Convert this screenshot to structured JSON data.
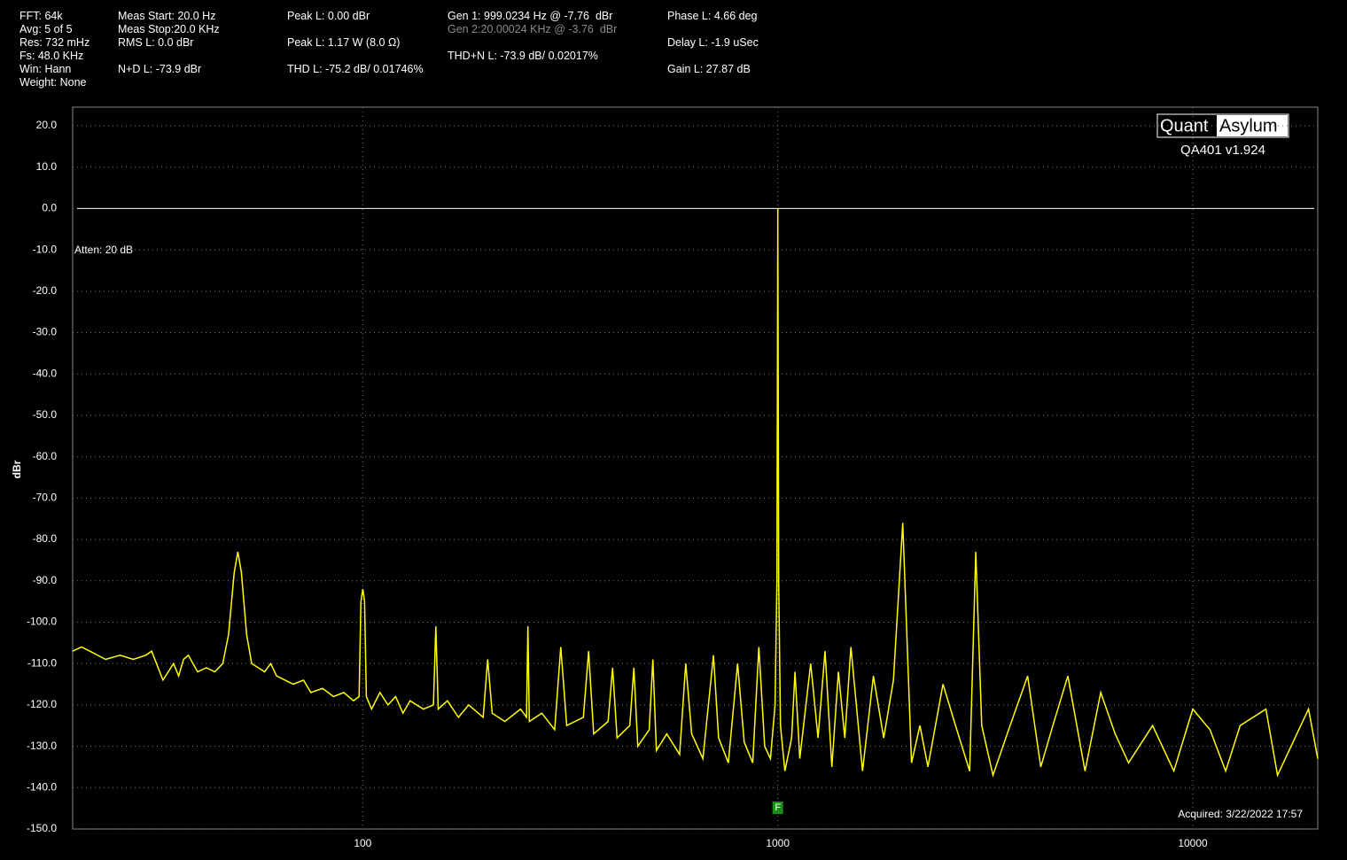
{
  "header": {
    "col1": [
      "FFT: 64k",
      "Avg: 5 of 5",
      "Res: 732 mHz",
      "Fs: 48.0 KHz",
      "Win: Hann",
      "Weight: None"
    ],
    "col2": [
      "Meas Start: 20.0 Hz",
      "Meas Stop:20.0 KHz",
      "RMS L: 0.0 dBr",
      "N+D L: -73.9 dBr"
    ],
    "col3": [
      "Peak L: 0.00 dBr",
      "Peak L: 1.17 W (8.0 Ω)",
      "THD L: -75.2 dB/ 0.01746%"
    ],
    "col4": [
      "Gen 1: 999.0234 Hz @ -7.76  dBr",
      "Gen 2:20.00024 KHz @ -3.76  dBr",
      "THD+N L: -73.9 dB/ 0.02017%"
    ],
    "col5": [
      "Phase L: 4.66 deg",
      "Delay L: -1.9 uSec",
      "Gain L: 27.87 dB"
    ]
  },
  "logo": {
    "left": "Quant",
    "right": "Asylum",
    "version": "QA401 v1.924"
  },
  "chart_data": {
    "type": "line",
    "ylabel": "dBr",
    "annotation": "Atten: 20 dB",
    "acquired": "Acquired: 3/22/2022  17:57",
    "marker": {
      "label": "F",
      "x": 1000
    },
    "xscale": "log",
    "xlim": [
      20,
      20000
    ],
    "xticks": [
      100,
      1000,
      10000
    ],
    "ylim": [
      -150,
      24.5
    ],
    "yticks": [
      {
        "value": -150,
        "label": "-150.0"
      },
      {
        "value": -140,
        "label": "-140.0"
      },
      {
        "value": -130,
        "label": "-130.0"
      },
      {
        "value": -120,
        "label": "-120.0"
      },
      {
        "value": -110,
        "label": "-110.0"
      },
      {
        "value": -100,
        "label": "-100.0"
      },
      {
        "value": -90,
        "label": "-90.0"
      },
      {
        "value": -80,
        "label": "-80.0"
      },
      {
        "value": -70,
        "label": "-70.0"
      },
      {
        "value": -60,
        "label": "-60.0"
      },
      {
        "value": -50,
        "label": "-50.0"
      },
      {
        "value": -40,
        "label": "-40.0"
      },
      {
        "value": -30,
        "label": "-30.0"
      },
      {
        "value": -20,
        "label": "-20.0"
      },
      {
        "value": -10,
        "label": "-10.0"
      },
      {
        "value": 0,
        "label": "0.0"
      },
      {
        "value": 10,
        "label": "10.0"
      },
      {
        "value": 20,
        "label": "20.0"
      }
    ],
    "grid": true,
    "reference_line": 0,
    "x": [
      20,
      21,
      22,
      24,
      26,
      28,
      30,
      31,
      33,
      35,
      36,
      37,
      38,
      40,
      42,
      44,
      46,
      47.5,
      49,
      50,
      51,
      52.5,
      54,
      56,
      58,
      60,
      62,
      65,
      68,
      72,
      75,
      80,
      85,
      90,
      95,
      98,
      99,
      100,
      101,
      102,
      105,
      110,
      115,
      120,
      125,
      130,
      140,
      148,
      150,
      152,
      160,
      170,
      180,
      195,
      200,
      205,
      220,
      240,
      248,
      250,
      252,
      270,
      290,
      300,
      310,
      340,
      350,
      360,
      390,
      400,
      410,
      440,
      450,
      460,
      490,
      500,
      510,
      540,
      580,
      600,
      620,
      660,
      700,
      720,
      760,
      800,
      830,
      870,
      900,
      930,
      960,
      985,
      995,
      1000,
      1005,
      1015,
      1040,
      1080,
      1100,
      1130,
      1200,
      1250,
      1300,
      1350,
      1400,
      1450,
      1500,
      1600,
      1700,
      1800,
      1900,
      2000,
      2100,
      2200,
      2300,
      2500,
      2700,
      2900,
      3000,
      3100,
      3300,
      3600,
      4000,
      4300,
      4600,
      5000,
      5500,
      6000,
      6500,
      7000,
      8000,
      9000,
      10000,
      11000,
      12000,
      13000,
      15000,
      16000,
      18000,
      19000,
      20000
    ],
    "series": [
      {
        "name": "L",
        "color": "#ffff00",
        "values": [
          -107,
          -106,
          -107,
          -109,
          -108,
          -109,
          -108,
          -107,
          -114,
          -110,
          -113,
          -109,
          -108,
          -112,
          -111,
          -112,
          -110,
          -103,
          -88,
          -83,
          -88,
          -103,
          -110,
          -111,
          -112,
          -110,
          -113,
          -114,
          -115,
          -114,
          -117,
          -116,
          -118,
          -117,
          -119,
          -118,
          -95,
          -92,
          -95,
          -118,
          -121,
          -117,
          -120,
          -118,
          -122,
          -119,
          -121,
          -120,
          -101,
          -121,
          -119,
          -123,
          -120,
          -123,
          -109,
          -122,
          -124,
          -121,
          -123,
          -101,
          -124,
          -122,
          -126,
          -106,
          -125,
          -123,
          -107,
          -127,
          -124,
          -111,
          -128,
          -125,
          -111,
          -130,
          -126,
          -109,
          -131,
          -127,
          -132,
          -110,
          -127,
          -133,
          -108,
          -128,
          -134,
          -110,
          -129,
          -134,
          -106,
          -130,
          -133,
          -120,
          -90,
          0,
          -90,
          -125,
          -136,
          -128,
          -112,
          -133,
          -110,
          -128,
          -107,
          -135,
          -112,
          -128,
          -106,
          -136,
          -113,
          -128,
          -114,
          -76,
          -134,
          -125,
          -135,
          -115,
          -126,
          -136,
          -83,
          -125,
          -137,
          -126,
          -113,
          -135,
          -125,
          -113,
          -136,
          -117,
          -127,
          -134,
          -125,
          -136,
          -121,
          -126,
          -136,
          -125,
          -121,
          -137,
          -126,
          -121,
          -133
        ]
      }
    ]
  }
}
